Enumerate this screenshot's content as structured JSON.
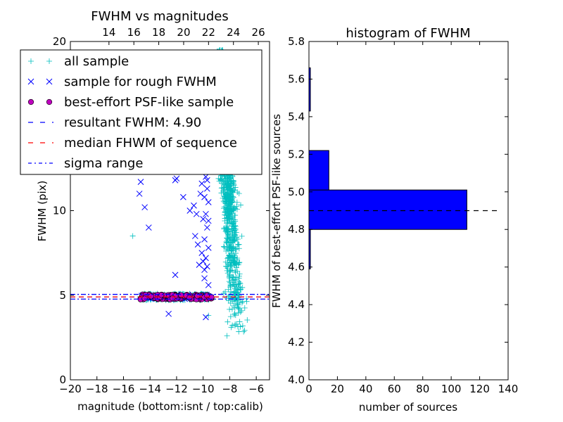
{
  "chart_data": [
    {
      "type": "scatter",
      "title": "FWHM vs magnitudes",
      "xlabel": "magnitude (bottom:isnt / top:calib)",
      "ylabel": "FWHM (pix)",
      "xlim": [
        -20,
        -5
      ],
      "ylim": [
        0,
        20
      ],
      "x_ticks": [
        -20,
        -18,
        -16,
        -14,
        -12,
        -10,
        -8,
        -6
      ],
      "x_tick_labels": [
        "−20",
        "−18",
        "−16",
        "−14",
        "−12",
        "−10",
        "−8",
        "−6"
      ],
      "y_ticks": [
        0,
        5,
        10,
        20
      ],
      "y_tick_labels": [
        "0",
        "5",
        "10",
        "20"
      ],
      "top_axis_ticks": [
        "14",
        "16",
        "18",
        "20",
        "22",
        "24",
        "26"
      ],
      "top_axis_range": [
        10.9,
        26.9
      ],
      "grid": false,
      "legend_position": "top-left",
      "legend": [
        {
          "label": "all sample",
          "marker": "+",
          "color": "#00bfbf"
        },
        {
          "label": "sample for rough FWHM",
          "marker": "x",
          "color": "#0000ff"
        },
        {
          "label": "best-effort PSF-like sample",
          "marker": "o",
          "color": "#bf00bf"
        },
        {
          "label": "resultant FWHM: 4.90",
          "marker": "dashed",
          "color": "#0000ff"
        },
        {
          "label": "median FHWM of sequence",
          "marker": "dashed",
          "color": "#ff0000"
        },
        {
          "label": "sigma range",
          "marker": "dashdot",
          "color": "#0000ff"
        }
      ],
      "series": [
        {
          "name": "all sample",
          "marker": "+",
          "color": "#00bfbf",
          "clusters": [
            {
              "x_range": [
                -9.5,
                -6.0
              ],
              "y_range": [
                2.8,
                19.5
              ],
              "approx_count": 1500,
              "note": "dense vertical cloud"
            },
            {
              "x_range": [
                -14.8,
                -9.5
              ],
              "y_range": [
                4.7,
                5.1
              ],
              "approx_count": 200
            }
          ],
          "points": [
            [
              -15.3,
              8.5
            ],
            [
              -9.6,
              3.8
            ],
            [
              -8.2,
              2.6
            ],
            [
              -7.6,
              3.2
            ]
          ]
        },
        {
          "name": "sample for rough FWHM",
          "marker": "x",
          "color": "#0000ff",
          "points": [
            [
              -14.8,
              11.0
            ],
            [
              -14.7,
              11.7
            ],
            [
              -14.4,
              10.2
            ],
            [
              -14.1,
              9.0
            ],
            [
              -12.6,
              3.9
            ],
            [
              -12.1,
              6.2
            ],
            [
              -12.1,
              11.8
            ],
            [
              -12.0,
              11.9
            ],
            [
              -11.5,
              10.8
            ],
            [
              -11.0,
              10.0
            ],
            [
              -10.7,
              10.3
            ],
            [
              -10.5,
              9.8
            ],
            [
              -10.2,
              11.0
            ],
            [
              -10.0,
              9.5
            ],
            [
              -10.6,
              8.5
            ],
            [
              -10.4,
              8.0
            ],
            [
              -10.1,
              7.5
            ],
            [
              -10.0,
              7.0
            ],
            [
              -10.3,
              6.8
            ],
            [
              -9.9,
              6.5
            ],
            [
              -9.8,
              12.0
            ],
            [
              -9.7,
              11.3
            ],
            [
              -9.9,
              10.8
            ],
            [
              -9.6,
              10.5
            ],
            [
              -9.8,
              9.8
            ],
            [
              -9.7,
              9.0
            ],
            [
              -9.9,
              8.3
            ],
            [
              -9.6,
              7.8
            ],
            [
              -9.8,
              7.2
            ],
            [
              -9.7,
              6.7
            ],
            [
              -9.9,
              6.0
            ],
            [
              -9.6,
              5.6
            ],
            [
              -9.8,
              3.7
            ],
            [
              -9.7,
              11.8
            ],
            [
              -9.6,
              9.4
            ],
            [
              -10.1,
              11.6
            ]
          ]
        },
        {
          "name": "best-effort PSF-like sample",
          "marker": "o",
          "color": "#bf00bf",
          "x_range": [
            -14.8,
            -9.3
          ],
          "y_range": [
            4.75,
            5.05
          ],
          "approx_count": 120
        }
      ],
      "lines": [
        {
          "name": "resultant FWHM: 4.90",
          "y": 4.9,
          "style": "dashed",
          "color": "#0000ff"
        },
        {
          "name": "median FHWM of sequence",
          "y": 4.9,
          "style": "dashed",
          "color": "#ff0000"
        },
        {
          "name": "sigma range",
          "y": 4.77,
          "style": "dashdot",
          "color": "#0000ff"
        },
        {
          "name": "sigma range",
          "y": 5.05,
          "style": "dashdot",
          "color": "#0000ff"
        }
      ]
    },
    {
      "type": "bar",
      "orientation": "horizontal",
      "title": "histogram of FWHM",
      "xlabel": "number of sources",
      "ylabel": "FWHM of best-effort PSF-like sources",
      "xlim": [
        0,
        140
      ],
      "ylim": [
        4.0,
        5.8
      ],
      "x_ticks": [
        "0",
        "20",
        "40",
        "60",
        "80",
        "100",
        "120",
        "140"
      ],
      "y_ticks": [
        "4.0",
        "4.2",
        "4.4",
        "4.6",
        "4.8",
        "5.0",
        "5.2",
        "5.4",
        "5.6",
        "5.8"
      ],
      "grid": false,
      "bar_color": "#0000ff",
      "bins": [
        {
          "from": 4.59,
          "to": 4.8,
          "count": 1
        },
        {
          "from": 4.8,
          "to": 5.01,
          "count": 111
        },
        {
          "from": 5.01,
          "to": 5.22,
          "count": 14
        },
        {
          "from": 5.22,
          "to": 5.43,
          "count": 0
        },
        {
          "from": 5.43,
          "to": 5.66,
          "count": 1
        }
      ],
      "reference_line": {
        "y": 4.9,
        "style": "dashed",
        "color": "#000000",
        "x_range": [
          0,
          135
        ]
      }
    }
  ]
}
